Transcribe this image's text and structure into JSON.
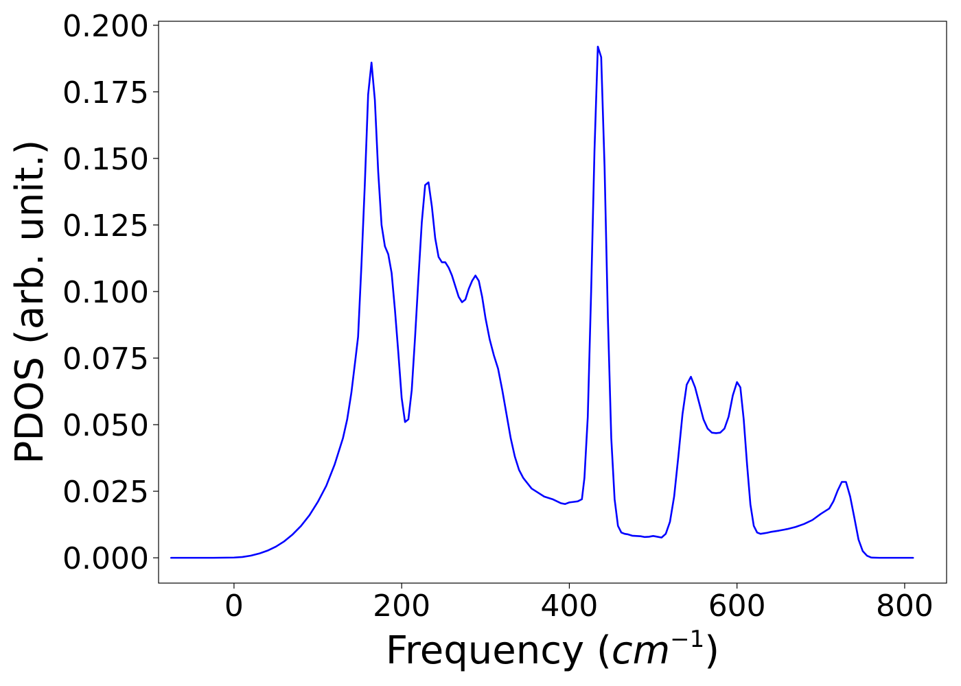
{
  "chart_data": {
    "type": "line",
    "title": "",
    "xlabel": "Frequency (",
    "xlabel_math_base": "cm",
    "xlabel_math_sup": "−1",
    "xlabel_suffix": ")",
    "ylabel": "PDOS (arb. unit.)",
    "xlim": [
      -90,
      850
    ],
    "ylim": [
      -0.0095,
      0.2015
    ],
    "xticks": [
      0,
      200,
      400,
      600,
      800
    ],
    "xtick_labels": [
      "0",
      "200",
      "400",
      "600",
      "800"
    ],
    "yticks": [
      0,
      0.025,
      0.05,
      0.075,
      0.1,
      0.125,
      0.15,
      0.175,
      0.2
    ],
    "ytick_labels": [
      "0.000",
      "0.025",
      "0.050",
      "0.075",
      "0.100",
      "0.125",
      "0.150",
      "0.175",
      "0.200"
    ],
    "grid": false,
    "legend": false,
    "line_color": "#0000ff",
    "series": [
      {
        "x": [
          -75,
          -50,
          -25,
          0,
          10,
          20,
          30,
          40,
          50,
          60,
          70,
          80,
          90,
          100,
          110,
          120,
          130,
          135,
          140,
          145,
          148,
          152,
          156,
          160,
          164,
          168,
          172,
          176,
          180,
          184,
          188,
          192,
          196,
          200,
          204,
          208,
          212,
          216,
          220,
          224,
          228,
          232,
          236,
          240,
          244,
          248,
          252,
          256,
          260,
          264,
          268,
          272,
          276,
          280,
          284,
          288,
          292,
          296,
          300,
          305,
          310,
          315,
          320,
          325,
          330,
          335,
          340,
          345,
          350,
          355,
          360,
          370,
          380,
          390,
          395,
          400,
          405,
          410,
          415,
          418,
          422,
          426,
          430,
          434,
          438,
          442,
          446,
          450,
          454,
          458,
          462,
          466,
          470,
          475,
          480,
          485,
          490,
          495,
          500,
          505,
          510,
          515,
          520,
          525,
          530,
          535,
          540,
          545,
          550,
          555,
          560,
          565,
          570,
          575,
          580,
          585,
          590,
          595,
          600,
          604,
          608,
          612,
          616,
          620,
          624,
          628,
          632,
          636,
          640,
          650,
          660,
          670,
          680,
          690,
          700,
          710,
          715,
          720,
          725,
          730,
          735,
          740,
          745,
          750,
          755,
          760,
          770,
          780,
          790,
          800,
          810
        ],
        "values": [
          0.0,
          0.0,
          0.0,
          0.0001,
          0.0003,
          0.0008,
          0.0016,
          0.0027,
          0.0042,
          0.0062,
          0.0088,
          0.012,
          0.016,
          0.021,
          0.027,
          0.035,
          0.045,
          0.052,
          0.062,
          0.075,
          0.083,
          0.11,
          0.14,
          0.174,
          0.186,
          0.172,
          0.145,
          0.125,
          0.117,
          0.114,
          0.107,
          0.093,
          0.077,
          0.06,
          0.051,
          0.052,
          0.063,
          0.083,
          0.105,
          0.126,
          0.14,
          0.141,
          0.132,
          0.12,
          0.113,
          0.111,
          0.111,
          0.109,
          0.106,
          0.102,
          0.098,
          0.096,
          0.097,
          0.101,
          0.104,
          0.106,
          0.104,
          0.098,
          0.09,
          0.082,
          0.076,
          0.071,
          0.063,
          0.054,
          0.045,
          0.038,
          0.033,
          0.03,
          0.028,
          0.026,
          0.025,
          0.023,
          0.022,
          0.0205,
          0.0202,
          0.0208,
          0.021,
          0.0212,
          0.022,
          0.03,
          0.053,
          0.1,
          0.153,
          0.192,
          0.188,
          0.147,
          0.09,
          0.045,
          0.022,
          0.012,
          0.0095,
          0.009,
          0.0088,
          0.0083,
          0.0082,
          0.0081,
          0.0078,
          0.0079,
          0.0082,
          0.0079,
          0.0076,
          0.009,
          0.0135,
          0.023,
          0.038,
          0.054,
          0.065,
          0.068,
          0.064,
          0.058,
          0.052,
          0.0485,
          0.047,
          0.0468,
          0.047,
          0.0485,
          0.053,
          0.061,
          0.066,
          0.064,
          0.052,
          0.035,
          0.02,
          0.012,
          0.0095,
          0.009,
          0.0092,
          0.0094,
          0.0097,
          0.0102,
          0.0108,
          0.0116,
          0.0127,
          0.0142,
          0.0165,
          0.0185,
          0.0212,
          0.0252,
          0.0285,
          0.0285,
          0.023,
          0.015,
          0.0068,
          0.0025,
          0.0008,
          0.0001,
          0.0,
          0.0,
          0.0,
          0.0,
          0.0
        ]
      }
    ]
  }
}
